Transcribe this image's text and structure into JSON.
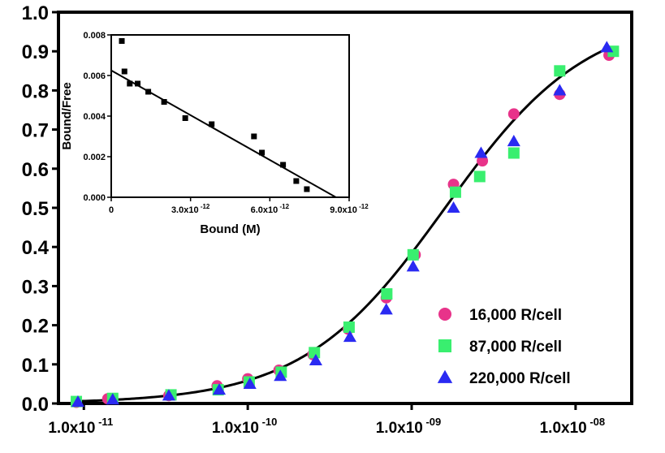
{
  "chart_data": [
    {
      "type": "scatter",
      "xscale": "log",
      "xlim": [
        7e-12,
        2.2e-08
      ],
      "ylim": [
        0,
        1.0
      ],
      "xlabel": "",
      "ylabel": "",
      "title": "",
      "grid": false,
      "legend_position": "bottom-right",
      "y_ticks": [
        {
          "value": 0.0,
          "label": "0.0"
        },
        {
          "value": 0.1,
          "label": "0.1"
        },
        {
          "value": 0.2,
          "label": "0.2"
        },
        {
          "value": 0.3,
          "label": "0.3"
        },
        {
          "value": 0.4,
          "label": "0.4"
        },
        {
          "value": 0.5,
          "label": "0.5"
        },
        {
          "value": 0.6,
          "label": "0.6"
        },
        {
          "value": 0.7,
          "label": "0.7"
        },
        {
          "value": 0.8,
          "label": "0.8"
        },
        {
          "value": 0.9,
          "label": "0.9"
        },
        {
          "value": 1.0,
          "label": "1.0"
        }
      ],
      "x_ticks": [
        {
          "value": 1e-11,
          "label": "1.0x10",
          "exp": "-11"
        },
        {
          "value": 1e-10,
          "label": "1.0x10",
          "exp": "-10"
        },
        {
          "value": 1e-09,
          "label": "1.0x10",
          "exp": "-09"
        },
        {
          "value": 1e-08,
          "label": "1.0x10",
          "exp": "-08"
        }
      ],
      "fit_curve": {
        "kd": 1.6e-09,
        "hill": 1.0
      },
      "series": [
        {
          "name": "16,000 R/cell",
          "color": "#e8338a",
          "marker": "circle",
          "x": [
            9e-12,
            1.4e-11,
            3.3e-11,
            6.5e-11,
            1e-10,
            1.55e-10,
            2.5e-10,
            4.1e-10,
            7e-10,
            1.05e-09,
            1.8e-09,
            2.7e-09,
            4.2e-09,
            8e-09,
            1.6e-08
          ],
          "y": [
            0.003,
            0.012,
            0.02,
            0.045,
            0.063,
            0.085,
            0.125,
            0.19,
            0.27,
            0.38,
            0.56,
            0.62,
            0.74,
            0.79,
            0.89
          ]
        },
        {
          "name": "87,000 R/cell",
          "color": "#39ef6f",
          "marker": "square",
          "x": [
            9e-12,
            1.5e-11,
            3.4e-11,
            6.6e-11,
            1.02e-10,
            1.6e-10,
            2.55e-10,
            4.15e-10,
            7.05e-10,
            1.02e-09,
            1.85e-09,
            2.6e-09,
            4.2e-09,
            8e-09,
            1.7e-08
          ],
          "y": [
            0.005,
            0.013,
            0.022,
            0.035,
            0.055,
            0.08,
            0.13,
            0.195,
            0.28,
            0.38,
            0.54,
            0.58,
            0.64,
            0.85,
            0.9
          ]
        },
        {
          "name": "220,000 R/cell",
          "color": "#2a2af2",
          "marker": "triangle",
          "x": [
            9.2e-12,
            1.5e-11,
            3.3e-11,
            6.7e-11,
            1.03e-10,
            1.58e-10,
            2.6e-10,
            4.2e-10,
            7e-10,
            1.02e-09,
            1.8e-09,
            2.65e-09,
            4.2e-09,
            8e-09,
            1.55e-08
          ],
          "y": [
            0.004,
            0.01,
            0.02,
            0.035,
            0.05,
            0.07,
            0.11,
            0.17,
            0.24,
            0.35,
            0.5,
            0.64,
            0.67,
            0.8,
            0.91
          ]
        }
      ]
    },
    {
      "type": "scatter",
      "xlim": [
        0,
        9e-12
      ],
      "ylim": [
        0,
        0.008
      ],
      "xlabel": "Bound (M)",
      "ylabel": "Bound/Free",
      "title": "",
      "x_ticks": [
        {
          "value": 0,
          "label": "0",
          "exp": ""
        },
        {
          "value": 3e-12,
          "label": "3.0x10",
          "exp": "-12"
        },
        {
          "value": 6e-12,
          "label": "6.0x10",
          "exp": "-12"
        },
        {
          "value": 9e-12,
          "label": "9.0x10",
          "exp": "-12"
        }
      ],
      "y_ticks": [
        {
          "value": 0.0,
          "label": "0.000"
        },
        {
          "value": 0.002,
          "label": "0.002"
        },
        {
          "value": 0.004,
          "label": "0.004"
        },
        {
          "value": 0.006,
          "label": "0.006"
        },
        {
          "value": 0.008,
          "label": "0.008"
        }
      ],
      "fit_line": {
        "x": [
          0,
          8.5e-12
        ],
        "y": [
          0.00625,
          0.0
        ]
      },
      "series": [
        {
          "color": "#000000",
          "marker": "square",
          "x": [
            4e-13,
            5e-13,
            7e-13,
            1e-12,
            1.4e-12,
            2e-12,
            2.8e-12,
            3.8e-12,
            5.4e-12,
            5.7e-12,
            6.5e-12,
            7e-12,
            7.4e-12
          ],
          "y": [
            0.0077,
            0.0062,
            0.0056,
            0.0056,
            0.0052,
            0.0047,
            0.0039,
            0.0036,
            0.003,
            0.0022,
            0.0016,
            0.0008,
            0.0004
          ]
        }
      ]
    }
  ]
}
